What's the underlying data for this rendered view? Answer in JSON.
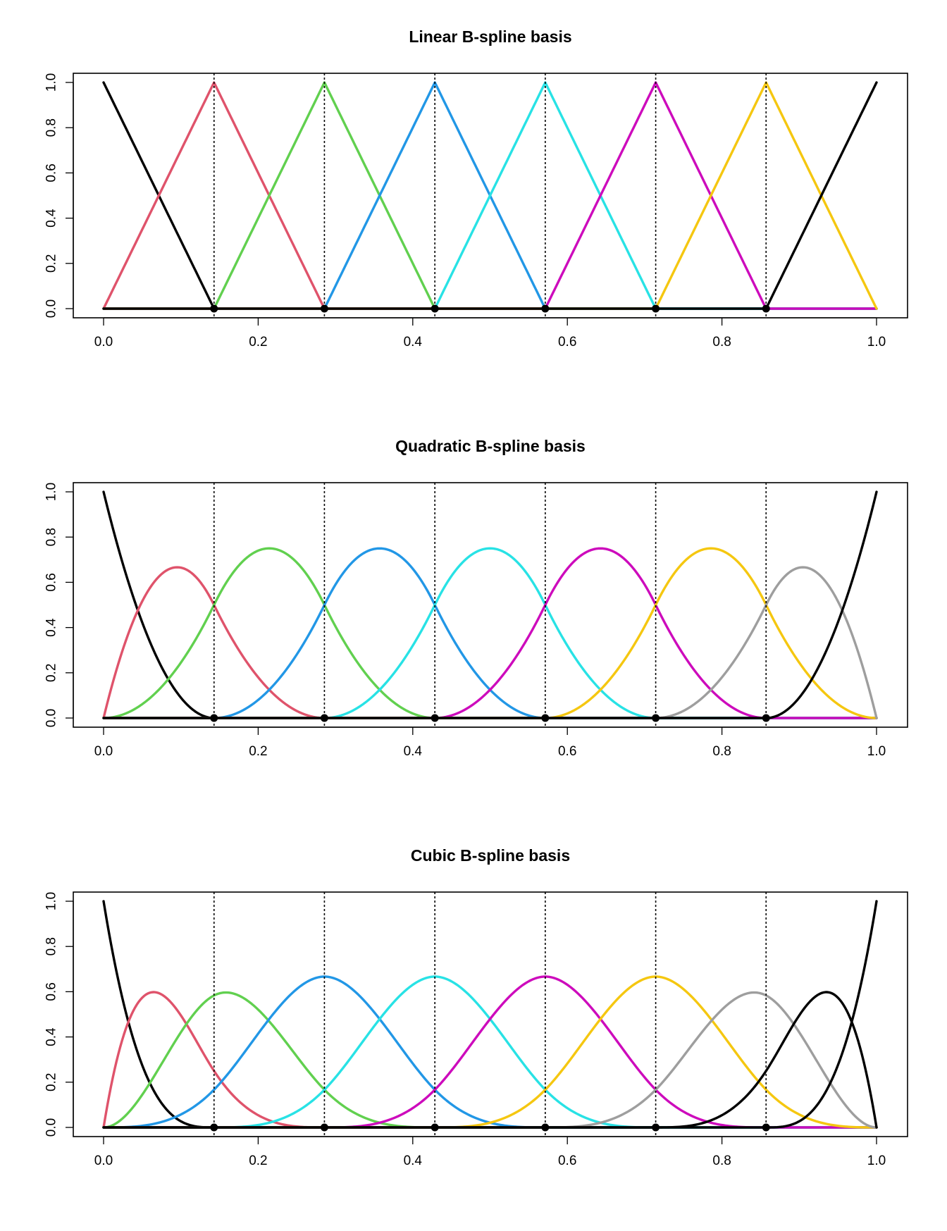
{
  "chart_data": [
    {
      "type": "line",
      "title": "Linear B-spline basis",
      "degree": 1,
      "xlim": [
        0,
        1
      ],
      "ylim": [
        0,
        1
      ],
      "x_ticks": [
        "0.0",
        "0.2",
        "0.4",
        "0.6",
        "0.8",
        "1.0"
      ],
      "y_ticks": [
        "0.0",
        "0.2",
        "0.4",
        "0.6",
        "0.8",
        "1.0"
      ],
      "interior_knots": [
        0.1429,
        0.2857,
        0.4286,
        0.5714,
        0.7143,
        0.8571
      ],
      "series_colors": [
        "#000000",
        "#DF536B",
        "#61D04F",
        "#2297E6",
        "#28E2E5",
        "#CD0BBC",
        "#F5C710"
      ],
      "series_peaks": [
        {
          "x": 0.1429,
          "y": 1.0
        },
        {
          "x": 0.2857,
          "y": 1.0
        },
        {
          "x": 0.4286,
          "y": 1.0
        },
        {
          "x": 0.5714,
          "y": 1.0
        },
        {
          "x": 0.7143,
          "y": 1.0
        },
        {
          "x": 0.8571,
          "y": 1.0
        },
        {
          "x": 1.0,
          "y": 1.0
        }
      ],
      "grid": false,
      "knot_markers": "dotted vertical lines with filled points at y=0"
    },
    {
      "type": "line",
      "title": "Quadratic B-spline basis",
      "degree": 2,
      "xlim": [
        0,
        1
      ],
      "ylim": [
        0,
        1
      ],
      "x_ticks": [
        "0.0",
        "0.2",
        "0.4",
        "0.6",
        "0.8",
        "1.0"
      ],
      "y_ticks": [
        "0.0",
        "0.2",
        "0.4",
        "0.6",
        "0.8",
        "1.0"
      ],
      "interior_knots": [
        0.1429,
        0.2857,
        0.4286,
        0.5714,
        0.7143,
        0.8571
      ],
      "series_colors": [
        "#000000",
        "#DF536B",
        "#61D04F",
        "#2297E6",
        "#28E2E5",
        "#CD0BBC",
        "#F5C710",
        "#9E9E9E"
      ],
      "series_peaks": [
        {
          "x": 0.095,
          "y": 0.667
        },
        {
          "x": 0.214,
          "y": 0.75
        },
        {
          "x": 0.357,
          "y": 0.75
        },
        {
          "x": 0.5,
          "y": 0.75
        },
        {
          "x": 0.643,
          "y": 0.75
        },
        {
          "x": 0.786,
          "y": 0.75
        },
        {
          "x": 0.905,
          "y": 0.667
        },
        {
          "x": 1.0,
          "y": 1.0
        }
      ],
      "grid": false,
      "knot_markers": "dotted vertical lines with filled points at y=0"
    },
    {
      "type": "line",
      "title": "Cubic B-spline basis",
      "degree": 3,
      "xlim": [
        0,
        1
      ],
      "ylim": [
        0,
        1
      ],
      "x_ticks": [
        "0.0",
        "0.2",
        "0.4",
        "0.6",
        "0.8",
        "1.0"
      ],
      "y_ticks": [
        "0.0",
        "0.2",
        "0.4",
        "0.6",
        "0.8",
        "1.0"
      ],
      "interior_knots": [
        0.1429,
        0.2857,
        0.4286,
        0.5714,
        0.7143,
        0.8571
      ],
      "series_colors": [
        "#000000",
        "#DF536B",
        "#61D04F",
        "#2297E6",
        "#28E2E5",
        "#CD0BBC",
        "#F5C710",
        "#9E9E9E",
        "#000000"
      ],
      "series_peaks": [
        {
          "x": 0.064,
          "y": 0.598
        },
        {
          "x": 0.157,
          "y": 0.598
        },
        {
          "x": 0.2857,
          "y": 0.667
        },
        {
          "x": 0.4286,
          "y": 0.667
        },
        {
          "x": 0.5714,
          "y": 0.667
        },
        {
          "x": 0.7143,
          "y": 0.667
        },
        {
          "x": 0.843,
          "y": 0.598
        },
        {
          "x": 0.936,
          "y": 0.598
        },
        {
          "x": 1.0,
          "y": 1.0
        }
      ],
      "grid": false,
      "knot_markers": "dotted vertical lines with filled points at y=0"
    }
  ]
}
